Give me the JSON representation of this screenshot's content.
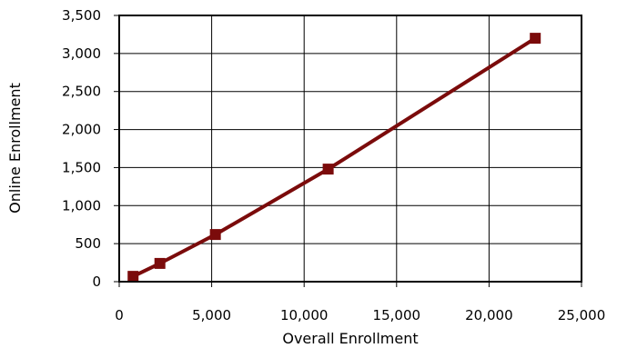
{
  "chart_data": {
    "type": "line",
    "title": "",
    "xlabel": "Overall Enrollment",
    "ylabel": "Online Enrollment",
    "xlim": [
      0,
      25000
    ],
    "ylim": [
      0,
      3500
    ],
    "x_ticks": [
      0,
      5000,
      10000,
      15000,
      20000,
      25000
    ],
    "y_ticks": [
      0,
      500,
      1000,
      1500,
      2000,
      2500,
      3000,
      3500
    ],
    "x_tick_labels": [
      "0",
      "5,000",
      "10,000",
      "15,000",
      "20,000",
      "25,000"
    ],
    "y_tick_labels": [
      "0",
      "500",
      "1,000",
      "1,500",
      "2,000",
      "2,500",
      "3,000",
      "3,500"
    ],
    "grid": true,
    "legend": "none",
    "series": [
      {
        "color": "#7b0b0b",
        "marker": "square",
        "points": [
          {
            "x": 750,
            "y": 70
          },
          {
            "x": 2200,
            "y": 240
          },
          {
            "x": 5200,
            "y": 620
          },
          {
            "x": 11300,
            "y": 1480
          },
          {
            "x": 22500,
            "y": 3200
          }
        ]
      }
    ]
  }
}
